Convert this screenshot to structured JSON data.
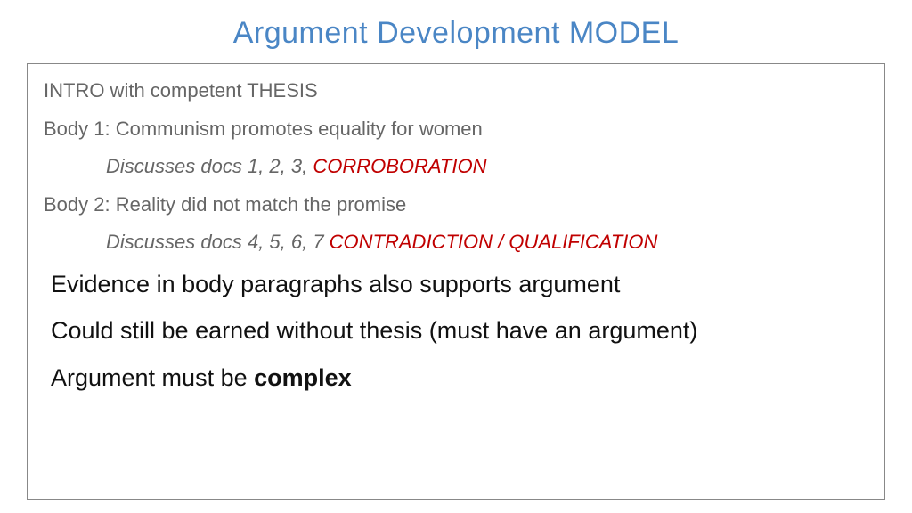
{
  "colors": {
    "title": "#4a86c5",
    "body_text": "#666666",
    "accent": "#c00000",
    "emphasis_text": "#111111",
    "border": "#888888",
    "background": "#ffffff"
  },
  "typography": {
    "title_fontsize": 34,
    "body_fontsize": 22,
    "emphasis_fontsize": 27,
    "font_family": "Arial, Helvetica, sans-serif"
  },
  "title": "Argument Development MODEL",
  "lines": {
    "intro": "INTRO with competent THESIS",
    "body1": "Body 1: Communism promotes equality for women",
    "body1_discuss_prefix": "Discusses docs 1, 2, 3, ",
    "body1_discuss_accent": "CORROBORATION",
    "body2": "Body 2: Reality did not match the promise",
    "body2_discuss_prefix": "Discusses docs 4, 5, 6, 7 ",
    "body2_discuss_accent": "CONTRADICTION / QUALIFICATION",
    "evidence": "Evidence in body paragraphs also supports argument",
    "could_still": "Could still be earned without thesis (must have an argument)",
    "argument_prefix": "Argument must be ",
    "argument_bold": "complex"
  }
}
